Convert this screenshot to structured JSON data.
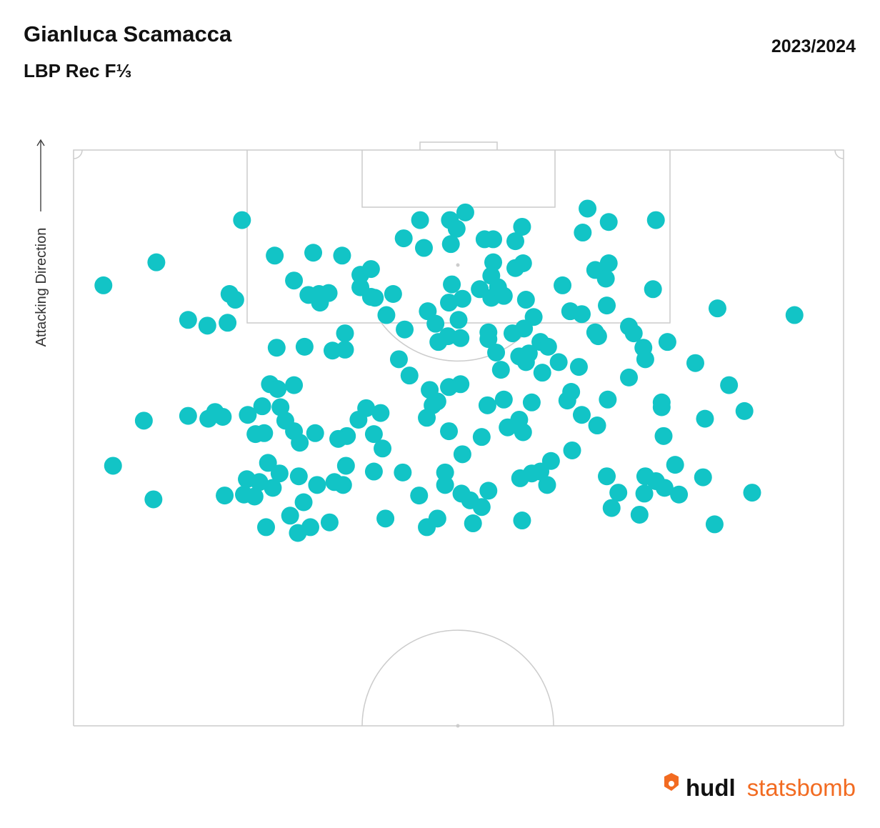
{
  "chart_data": {
    "type": "scatter",
    "title": "Gianluca Scamacca",
    "subtitle": "LBP Rec F⅓",
    "season": "2023/2024",
    "direction_label": "Attacking Direction",
    "logo": {
      "brand": "hudl",
      "product": "statsbomb"
    },
    "color": "#12c4c6",
    "xlim": [
      0,
      80
    ],
    "ylim": [
      60,
      120
    ],
    "x": [
      3.1,
      8.6,
      4.1,
      7.3,
      8.3,
      11.9,
      13.9,
      16.0,
      16.2,
      16.8,
      17.5,
      11.9,
      14.0,
      14.7,
      15.5,
      18.1,
      19.6,
      20.4,
      21.2,
      22.9,
      21.1,
      24.0,
      20.9,
      24.9,
      27.9,
      22.9,
      24.4,
      25.6,
      25.5,
      26.5,
      29.8,
      30.9,
      29.8,
      30.9,
      31.3,
      33.2,
      32.5,
      28.2,
      26.9,
      28.2,
      34.3,
      36.0,
      36.4,
      39.1,
      39.8,
      40.7,
      39.2,
      42.7,
      43.6,
      45.9,
      46.6,
      43.6,
      45.9,
      46.7,
      39.3,
      39.0,
      40.4,
      42.2,
      43.4,
      43.4,
      44.1,
      44.7,
      47.0,
      47.8,
      40.0,
      36.8,
      37.6,
      34.4,
      37.9,
      38.9,
      40.2,
      43.1,
      43.1,
      43.9,
      45.6,
      46.8,
      48.5,
      49.3,
      46.3,
      47.3,
      47.0,
      44.4,
      48.7,
      50.4,
      52.5,
      50.8,
      51.6,
      52.8,
      53.4,
      55.6,
      52.9,
      55.6,
      54.2,
      55.3,
      55.4,
      54.2,
      54.5,
      57.7,
      58.2,
      60.5,
      60.2,
      66.9,
      74.9,
      61.7,
      59.2,
      59.4,
      64.6,
      57.7,
      68.1,
      61.1,
      61.1,
      69.7,
      65.6,
      61.3,
      55.5,
      54.4,
      52.8,
      51.7,
      51.3,
      51.8,
      49.6,
      48.5,
      47.6,
      46.4,
      49.2,
      47.6,
      46.3,
      45.1,
      46.7,
      44.7,
      43.0,
      42.4,
      40.2,
      39.0,
      37.0,
      37.8,
      37.3,
      36.7,
      39.0,
      40.4,
      38.6,
      38.6,
      40.3,
      41.2,
      42.4,
      43.1,
      35.9,
      37.8,
      36.7,
      41.5,
      46.6,
      34.9,
      33.8,
      32.4,
      34.2,
      31.2,
      32.1,
      31.2,
      31.9,
      30.4,
      29.6,
      28.4,
      27.5,
      25.1,
      23.5,
      22.9,
      22.0,
      21.5,
      19.8,
      18.9,
      20.2,
      21.4,
      19.3,
      18.0,
      20.7,
      23.4,
      25.3,
      27.1,
      28.0,
      28.3,
      23.9,
      22.5,
      23.3,
      24.6,
      26.6,
      20.0,
      17.7,
      18.8,
      15.7,
      55.4,
      56.6,
      55.9,
      58.8,
      59.4,
      59.3,
      60.5,
      61.4,
      62.5,
      62.9,
      65.4,
      66.6,
      70.5
    ],
    "y": [
      105.9,
      108.3,
      87.1,
      91.8,
      83.6,
      102.3,
      101.7,
      102.0,
      105.0,
      104.4,
      112.7,
      92.3,
      92.0,
      92.7,
      92.2,
      92.4,
      93.3,
      95.6,
      95.1,
      95.5,
      99.4,
      99.5,
      109.0,
      109.3,
      109.0,
      106.4,
      104.9,
      104.1,
      105.0,
      105.1,
      107.0,
      107.6,
      105.7,
      104.7,
      104.6,
      105.0,
      102.8,
      100.9,
      99.1,
      99.2,
      110.8,
      112.7,
      109.8,
      112.7,
      111.8,
      113.5,
      110.2,
      110.7,
      110.7,
      110.5,
      112.0,
      108.3,
      107.7,
      108.2,
      106.0,
      104.1,
      104.5,
      105.5,
      106.9,
      104.6,
      105.7,
      104.8,
      104.4,
      102.6,
      102.3,
      103.2,
      101.9,
      101.3,
      100.0,
      100.6,
      100.4,
      101.0,
      100.3,
      98.9,
      100.9,
      101.4,
      100.0,
      99.5,
      98.5,
      98.8,
      97.9,
      97.1,
      96.8,
      97.9,
      97.4,
      105.9,
      103.2,
      102.9,
      113.9,
      112.5,
      111.4,
      108.2,
      107.5,
      106.6,
      103.8,
      101.0,
      100.6,
      101.6,
      100.9,
      112.7,
      105.5,
      103.5,
      102.8,
      100.0,
      99.4,
      98.2,
      97.8,
      96.3,
      95.5,
      93.7,
      93.2,
      92.8,
      92.0,
      90.2,
      94.0,
      91.3,
      92.4,
      94.8,
      93.9,
      88.7,
      87.6,
      86.5,
      86.3,
      85.8,
      85.1,
      93.7,
      91.9,
      91.1,
      90.6,
      94.0,
      93.4,
      90.1,
      95.6,
      95.3,
      95.0,
      93.8,
      93.4,
      92.1,
      90.7,
      88.3,
      86.4,
      85.1,
      84.2,
      83.5,
      82.8,
      84.5,
      84.0,
      81.6,
      80.7,
      81.1,
      81.4,
      96.5,
      98.2,
      81.6,
      86.4,
      86.5,
      88.9,
      90.4,
      92.6,
      93.1,
      91.9,
      90.2,
      89.9,
      90.5,
      89.5,
      90.7,
      91.8,
      93.2,
      90.5,
      90.4,
      87.4,
      86.3,
      85.4,
      85.7,
      84.8,
      86.0,
      85.1,
      85.4,
      85.1,
      87.1,
      83.3,
      81.9,
      80.1,
      80.7,
      81.2,
      80.7,
      84.1,
      83.9,
      84.0,
      86.0,
      84.3,
      82.7,
      82.0,
      86.0,
      84.2,
      85.5,
      84.8,
      87.2,
      84.1,
      85.9,
      81.0,
      84.3
    ]
  }
}
